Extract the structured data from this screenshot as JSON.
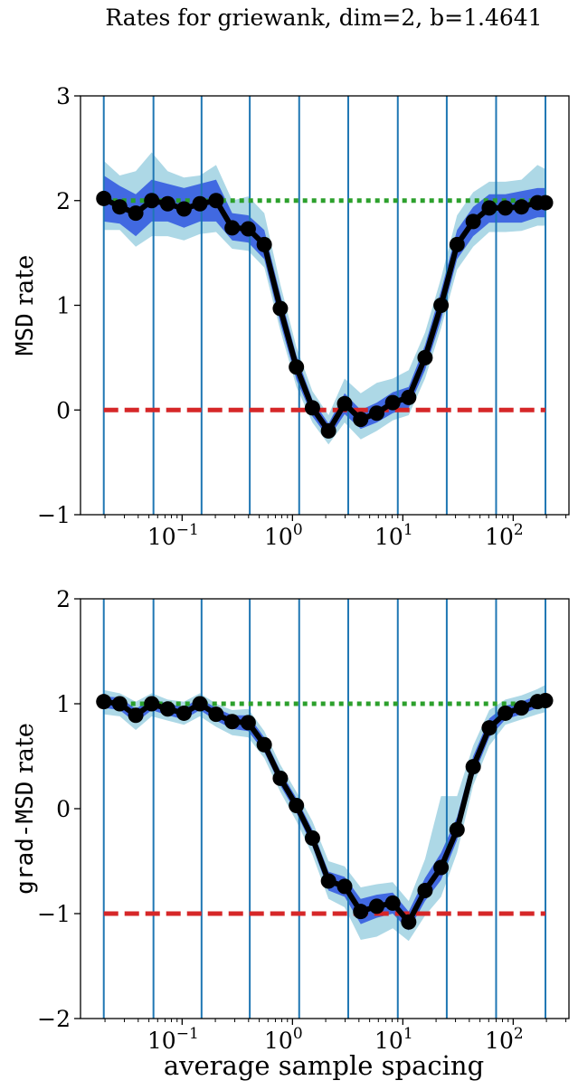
{
  "figure": {
    "title": "Rates for griewank, dim=2, b=1.4641",
    "xlabel": "average sample spacing"
  },
  "chart_data": [
    {
      "type": "line",
      "xscale": "log",
      "xlim": [
        0.012,
        320
      ],
      "ylim": [
        -1,
        3
      ],
      "yticks": [
        -1,
        0,
        1,
        2,
        3
      ],
      "xtick_labels": [
        {
          "value": 0.1,
          "base": "10",
          "exp": "−1"
        },
        {
          "value": 1,
          "base": "10",
          "exp": "0"
        },
        {
          "value": 10,
          "base": "10",
          "exp": "1"
        },
        {
          "value": 100,
          "base": "10",
          "exp": "2"
        }
      ],
      "ylabel_mono": "MSD",
      "ylabel_text": " rate",
      "vlines": [
        0.0195,
        0.055,
        0.15,
        0.41,
        1.15,
        3.2,
        9.0,
        25.0,
        70.0,
        196.0
      ],
      "reference_lines": [
        {
          "y": 2,
          "style": "dotted",
          "color": "#2ca02c"
        },
        {
          "y": 0,
          "style": "dashed",
          "color": "#d62728"
        }
      ],
      "x": [
        0.0195,
        0.0272,
        0.038,
        0.053,
        0.074,
        0.104,
        0.145,
        0.203,
        0.284,
        0.397,
        0.555,
        0.776,
        1.085,
        1.517,
        2.12,
        2.97,
        4.15,
        5.8,
        8.1,
        11.3,
        15.9,
        22.2,
        31.0,
        43.4,
        60.7,
        84.9,
        118.7,
        166.0,
        196.0
      ],
      "series": [
        {
          "role": "median",
          "color": "#000000",
          "values": [
            2.02,
            1.94,
            1.88,
            2.0,
            1.97,
            1.92,
            1.97,
            2.0,
            1.74,
            1.73,
            1.58,
            0.97,
            0.41,
            0.02,
            -0.2,
            0.06,
            -0.09,
            -0.03,
            0.07,
            0.12,
            0.5,
            1.0,
            1.58,
            1.8,
            1.93,
            1.93,
            1.94,
            1.98,
            1.98
          ]
        },
        {
          "role": "inner-band",
          "color": "#4169e1",
          "lower": [
            1.8,
            1.78,
            1.66,
            1.8,
            1.8,
            1.74,
            1.8,
            1.8,
            1.62,
            1.6,
            1.44,
            0.83,
            0.29,
            -0.06,
            -0.27,
            -0.04,
            -0.18,
            -0.12,
            -0.03,
            0.02,
            0.38,
            0.86,
            1.44,
            1.66,
            1.79,
            1.79,
            1.79,
            1.84,
            1.84
          ],
          "upper": [
            2.24,
            2.14,
            2.06,
            2.2,
            2.16,
            2.12,
            2.16,
            2.2,
            1.88,
            1.86,
            1.72,
            1.1,
            0.52,
            0.1,
            -0.13,
            0.16,
            0.0,
            0.07,
            0.17,
            0.22,
            0.62,
            1.14,
            1.72,
            1.94,
            2.06,
            2.06,
            2.09,
            2.12,
            2.12
          ]
        },
        {
          "role": "outer-band",
          "color": "#add8e6",
          "lower": [
            1.72,
            1.72,
            1.56,
            1.66,
            1.66,
            1.62,
            1.68,
            1.7,
            1.54,
            1.52,
            1.36,
            0.76,
            0.22,
            -0.12,
            -0.33,
            -0.12,
            -0.28,
            -0.2,
            -0.1,
            -0.05,
            0.3,
            0.78,
            1.34,
            1.56,
            1.7,
            1.7,
            1.71,
            1.76,
            1.76
          ],
          "upper": [
            2.38,
            2.24,
            2.28,
            2.46,
            2.28,
            2.22,
            2.24,
            2.34,
            2.0,
            2.04,
            1.88,
            1.2,
            0.6,
            0.18,
            -0.05,
            0.3,
            0.16,
            0.26,
            0.3,
            0.38,
            0.74,
            1.26,
            1.86,
            2.08,
            2.18,
            2.18,
            2.2,
            2.34,
            2.3
          ]
        }
      ]
    },
    {
      "type": "line",
      "xscale": "log",
      "xlim": [
        0.012,
        320
      ],
      "ylim": [
        -2,
        2
      ],
      "yticks": [
        -2,
        -1,
        0,
        1,
        2
      ],
      "xtick_labels": [
        {
          "value": 0.1,
          "base": "10",
          "exp": "−1"
        },
        {
          "value": 1,
          "base": "10",
          "exp": "0"
        },
        {
          "value": 10,
          "base": "10",
          "exp": "1"
        },
        {
          "value": 100,
          "base": "10",
          "exp": "2"
        }
      ],
      "ylabel_mono": "grad-MSD",
      "ylabel_text": " rate",
      "vlines": [
        0.0195,
        0.055,
        0.15,
        0.41,
        1.15,
        3.2,
        9.0,
        25.0,
        70.0,
        196.0
      ],
      "reference_lines": [
        {
          "y": 1,
          "style": "dotted",
          "color": "#2ca02c"
        },
        {
          "y": -1,
          "style": "dashed",
          "color": "#d62728"
        }
      ],
      "x": [
        0.0195,
        0.0272,
        0.038,
        0.053,
        0.074,
        0.104,
        0.145,
        0.203,
        0.284,
        0.397,
        0.555,
        0.776,
        1.085,
        1.517,
        2.12,
        2.97,
        4.15,
        5.8,
        8.1,
        11.3,
        15.9,
        22.2,
        31.0,
        43.4,
        60.7,
        84.9,
        118.7,
        166.0,
        196.0
      ],
      "series": [
        {
          "role": "median",
          "color": "#000000",
          "values": [
            1.02,
            1.0,
            0.89,
            1.0,
            0.95,
            0.91,
            1.0,
            0.9,
            0.83,
            0.82,
            0.61,
            0.29,
            0.03,
            -0.28,
            -0.69,
            -0.74,
            -0.98,
            -0.93,
            -0.9,
            -1.08,
            -0.78,
            -0.56,
            -0.2,
            0.4,
            0.77,
            0.91,
            0.96,
            1.02,
            1.03
          ]
        },
        {
          "role": "inner-band",
          "color": "#4169e1",
          "lower": [
            0.96,
            0.94,
            0.82,
            0.94,
            0.89,
            0.85,
            0.94,
            0.84,
            0.76,
            0.74,
            0.54,
            0.22,
            -0.04,
            -0.36,
            -0.78,
            -0.84,
            -1.1,
            -1.04,
            -1.0,
            -1.16,
            -0.88,
            -0.68,
            -0.3,
            0.3,
            0.68,
            0.85,
            0.9,
            0.96,
            0.97
          ],
          "upper": [
            1.07,
            1.06,
            0.95,
            1.05,
            1.0,
            0.97,
            1.05,
            0.96,
            0.89,
            0.89,
            0.68,
            0.36,
            0.1,
            -0.2,
            -0.6,
            -0.65,
            -0.86,
            -0.82,
            -0.8,
            -0.98,
            -0.66,
            -0.42,
            -0.08,
            0.5,
            0.86,
            0.98,
            1.02,
            1.08,
            1.09
          ]
        },
        {
          "role": "outer-band",
          "color": "#add8e6",
          "lower": [
            0.9,
            0.88,
            0.75,
            0.88,
            0.84,
            0.8,
            0.88,
            0.78,
            0.7,
            0.68,
            0.48,
            0.16,
            -0.12,
            -0.44,
            -0.86,
            -0.94,
            -1.25,
            -1.22,
            -1.14,
            -1.26,
            -1.02,
            -0.84,
            -0.42,
            0.22,
            0.6,
            0.8,
            0.85,
            0.9,
            0.92
          ],
          "upper": [
            1.13,
            1.1,
            1.02,
            1.1,
            1.04,
            1.02,
            1.1,
            1.0,
            0.94,
            0.95,
            0.74,
            0.42,
            0.16,
            -0.12,
            -0.5,
            -0.55,
            -0.75,
            -0.72,
            -0.7,
            -0.88,
            -0.48,
            0.12,
            0.12,
            0.6,
            0.94,
            1.04,
            1.08,
            1.14,
            1.18
          ]
        }
      ]
    }
  ]
}
